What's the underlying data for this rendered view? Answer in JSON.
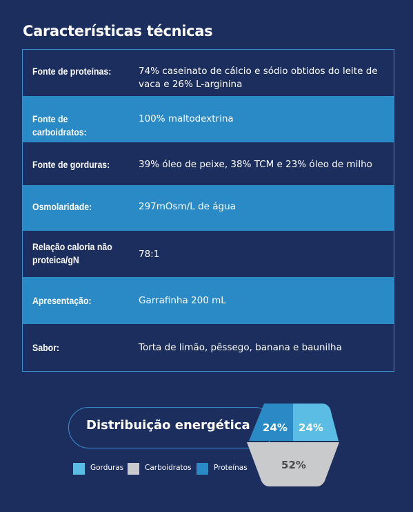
{
  "title": "Características técnicas",
  "specs": [
    {
      "label": "Fonte de proteínas:",
      "value": "74% caseinato de cálcio e sódio obtidos do leite de vaca e 26% L-arginina"
    },
    {
      "label": "Fonte de carboidratos:",
      "value": "100% maltodextrina"
    },
    {
      "label": "Fonte de gorduras:",
      "value": "39% óleo de peixe, 38% TCM e 23% óleo de milho"
    },
    {
      "label": "Osmolaridade:",
      "value": "297mOsm/L de água"
    },
    {
      "label": "Relação caloria não proteica/gN",
      "value": "78:1"
    },
    {
      "label": "Apresentação:",
      "value": "Garrafinha 200 mL"
    },
    {
      "label": "Sabor:",
      "value": "Torta de limão, pêssego, banana e baunilha"
    }
  ],
  "energy": {
    "title": "Distribuição energética",
    "segments": [
      {
        "name": "Proteínas",
        "label": "24%",
        "percent": 24,
        "color": "#2a8ac6"
      },
      {
        "name": "Gorduras",
        "label": "24%",
        "percent": 24,
        "color": "#5bbde4"
      },
      {
        "name": "Carboidratos",
        "label": "52%",
        "percent": 52,
        "color": "#c9cacc"
      }
    ],
    "legend": [
      {
        "label": "Gorduras",
        "color": "#5bbde4"
      },
      {
        "label": "Carboidratos",
        "color": "#c9cacc"
      },
      {
        "label": "Proteínas",
        "color": "#2a8ac6"
      }
    ]
  },
  "colors": {
    "background": "#1c2e5e",
    "row_light": "#2a8ac6",
    "border": "#3c8fcf"
  }
}
